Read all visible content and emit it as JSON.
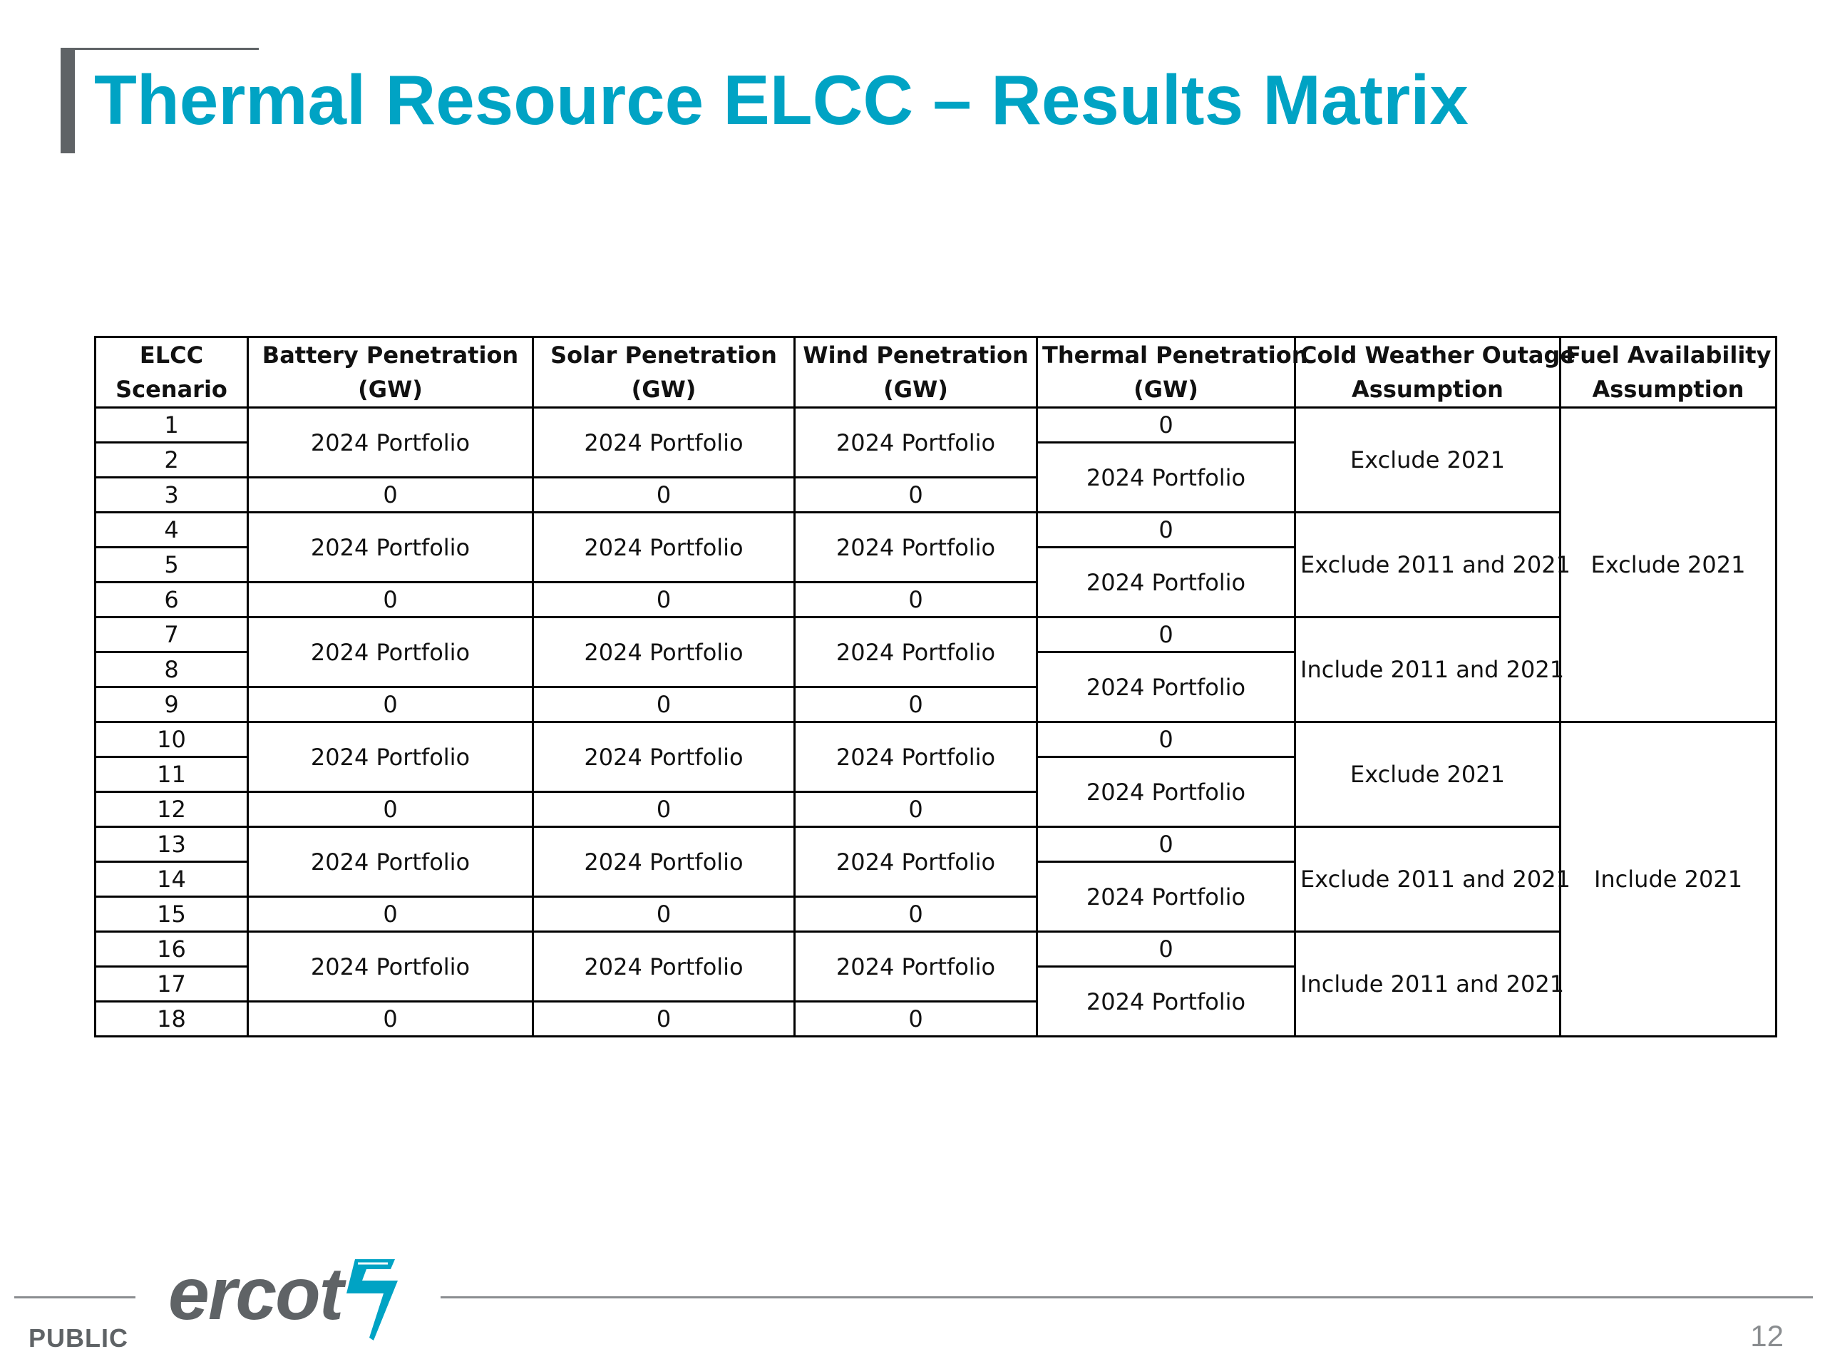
{
  "slide": {
    "title": "Thermal Resource ELCC – Results Matrix",
    "page_number": "12",
    "classification": "PUBLIC",
    "logo_text": "ercot",
    "accent_color": "#00a3c4",
    "rule_color": "#5f6366"
  },
  "table": {
    "headers": [
      [
        "ELCC",
        "Scenario"
      ],
      [
        "Battery Penetration",
        "(GW)"
      ],
      [
        "Solar Penetration",
        "(GW)"
      ],
      [
        "Wind Penetration",
        "(GW)"
      ],
      [
        "Thermal Penetration",
        "(GW)"
      ],
      [
        "Cold Weather Outage",
        "Assumption"
      ],
      [
        "Fuel Availability",
        "Assumption"
      ]
    ],
    "scenarios": [
      "1",
      "2",
      "3",
      "4",
      "5",
      "6",
      "7",
      "8",
      "9",
      "10",
      "11",
      "12",
      "13",
      "14",
      "15",
      "16",
      "17",
      "18"
    ],
    "portfolio": "2024 Portfolio",
    "zero": "0",
    "cold_weather": [
      "Exclude 2021",
      "Exclude 2011 and 2021",
      "Include 2011 and 2021",
      "Exclude 2021",
      "Exclude 2011 and 2021",
      "Include 2011 and 2021"
    ],
    "fuel_availability": [
      "Exclude 2021",
      "Include 2021"
    ]
  }
}
